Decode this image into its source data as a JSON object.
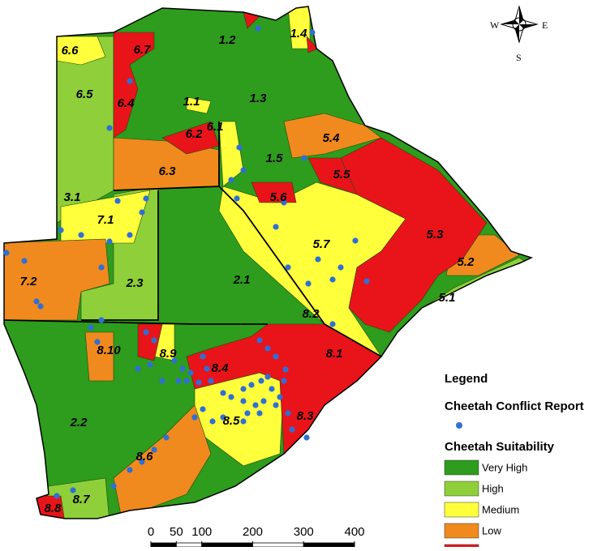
{
  "compass": {
    "west": "W",
    "east": "E",
    "south": "S"
  },
  "regions": [
    "1.1",
    "1.2",
    "1.3",
    "1.4",
    "1.5",
    "2.1",
    "2.2",
    "2.3",
    "3.1",
    "5.1",
    "5.2",
    "5.3",
    "5.4",
    "5.5",
    "5.6",
    "5.7",
    "6.1",
    "6.2",
    "6.3",
    "6.4",
    "6.5",
    "6.6",
    "6.7",
    "7.1",
    "7.2",
    "8.1",
    "8.2",
    "8.3",
    "8.4",
    "8.5",
    "8.6",
    "8.7",
    "8.8",
    "8.9",
    "8.10"
  ],
  "legend": {
    "title": "Legend",
    "conflict_label": "Cheetah Conflict Report",
    "conflict_color": "#2f6fd6",
    "suitability_title": "Cheetah Suitability",
    "classes": [
      {
        "label": "Very High",
        "color": "#2e9c1c"
      },
      {
        "label": "High",
        "color": "#8fcf3a"
      },
      {
        "label": "Medium",
        "color": "#ffff3c"
      },
      {
        "label": "Low",
        "color": "#f08a1e"
      },
      {
        "color": "#e8141a"
      }
    ]
  },
  "scale_bar": {
    "ticks": [
      0,
      50,
      100,
      200,
      300,
      400
    ]
  }
}
